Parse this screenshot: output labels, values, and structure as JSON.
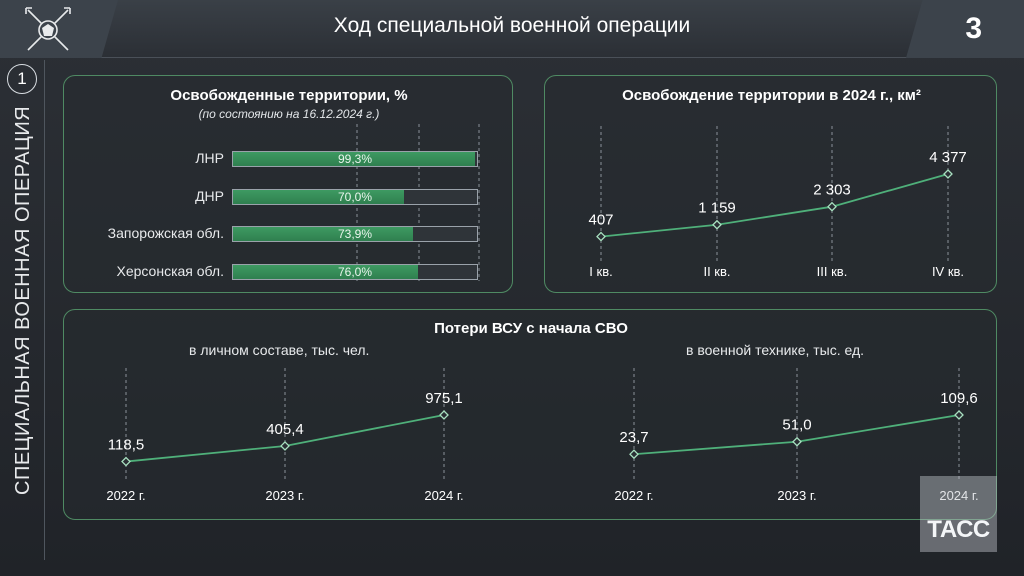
{
  "header": {
    "title": "Ход специальной военной операции",
    "page_number": "3",
    "logo_icon": "military-emblem-icon"
  },
  "side": {
    "number": "1",
    "label": "СПЕЦИАЛЬНАЯ ВОЕННАЯ ОПЕРАЦИЯ"
  },
  "watermark": {
    "text": "ТАСС"
  },
  "colors": {
    "accent_green": "#2f7f4f",
    "panel_border": "#4f8a63",
    "line_green": "#4fb07a"
  },
  "chart_data": [
    {
      "type": "bar",
      "title": "Освобожденные территории, %",
      "subtitle": "(по состоянию на 16.12.2024 г.)",
      "categories": [
        "ЛНР",
        "ДНР",
        "Запорожская обл.",
        "Херсонская обл."
      ],
      "values": [
        99.3,
        70.0,
        73.9,
        76.0
      ],
      "value_labels": [
        "99,3%",
        "70,0%",
        "73,9%",
        "76,0%"
      ],
      "xlim": [
        0,
        100
      ],
      "orientation": "horizontal"
    },
    {
      "type": "line",
      "title": "Освобождение территории в 2024 г., км²",
      "categories": [
        "I кв.",
        "II кв.",
        "III кв.",
        "IV кв."
      ],
      "values": [
        407,
        1159,
        2303,
        4377
      ],
      "value_labels": [
        "407",
        "1 159",
        "2 303",
        "4 377"
      ]
    },
    {
      "type": "line",
      "title": "Потери ВСУ с начала СВО",
      "subtitle": "в личном составе, тыс. чел.",
      "categories": [
        "2022 г.",
        "2023 г.",
        "2024 г."
      ],
      "values": [
        118.5,
        405.4,
        975.1
      ],
      "value_labels": [
        "118,5",
        "405,4",
        "975,1"
      ]
    },
    {
      "type": "line",
      "subtitle": "в военной технике, тыс. ед.",
      "categories": [
        "2022 г.",
        "2023 г.",
        "2024 г."
      ],
      "values": [
        23.7,
        51.0,
        109.6
      ],
      "value_labels": [
        "23,7",
        "51,0",
        "109,6"
      ]
    }
  ]
}
